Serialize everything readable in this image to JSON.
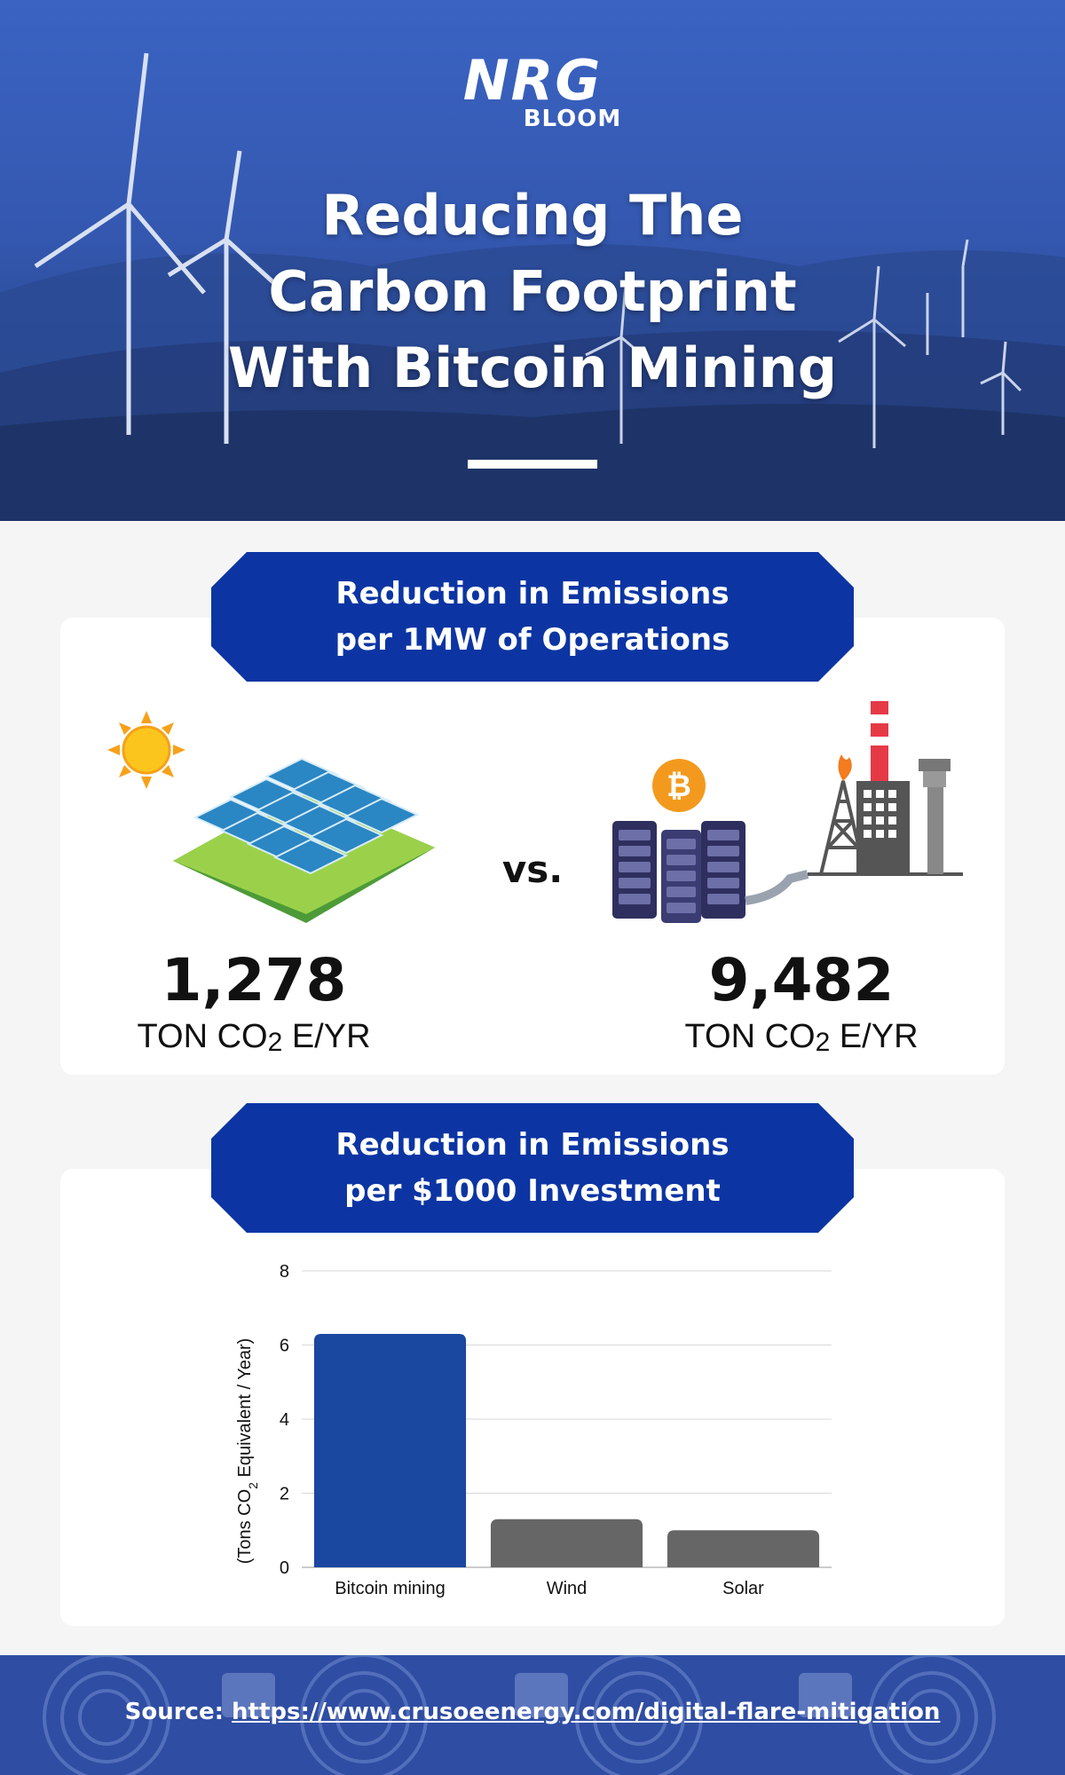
{
  "brand": {
    "logo_main": "NRG",
    "logo_sub": "BLOOM"
  },
  "hero": {
    "title_lines": [
      "Reducing The",
      "Carbon Footprint",
      "With Bitcoin Mining"
    ]
  },
  "section1": {
    "banner_line1": "Reduction in Emissions",
    "banner_line2": "per 1MW of Operations",
    "vs": "vs.",
    "left": {
      "value": "1,278",
      "unit_prefix": "TON CO",
      "unit_sub": "2",
      "unit_suffix": " E/YR",
      "icon": "solar-farm-icon"
    },
    "right": {
      "value": "9,482",
      "unit_prefix": "TON CO",
      "unit_sub": "2",
      "unit_suffix": " E/YR",
      "icon": "bitcoin-flare-mining-icon"
    }
  },
  "section2": {
    "banner_line1": "Reduction in Emissions",
    "banner_line2": "per $1000 Investment"
  },
  "chart_data": {
    "type": "bar",
    "categories": [
      "Bitcoin mining",
      "Wind",
      "Solar"
    ],
    "values": [
      6.3,
      1.3,
      1.0
    ],
    "colors": [
      "#1a47a0",
      "#666666",
      "#666666"
    ],
    "ylabel": "(Tons CO2 Equivalent / Year)",
    "ylabel_prefix": "(Tons CO",
    "ylabel_sub": "2",
    "ylabel_suffix": " Equivalent / Year)",
    "yticks": [
      0,
      2,
      4,
      6,
      8
    ],
    "ylim": [
      0,
      8
    ],
    "grid": true,
    "legend": "none"
  },
  "footer": {
    "source_label": "Source: ",
    "source_url": "https://www.crusoeenergy.com/digital-flare-mitigation"
  },
  "colors": {
    "banner": "#0c35a3",
    "hero": "#3458b0",
    "accent_bar": "#1a47a0",
    "grey_bar": "#666666"
  }
}
